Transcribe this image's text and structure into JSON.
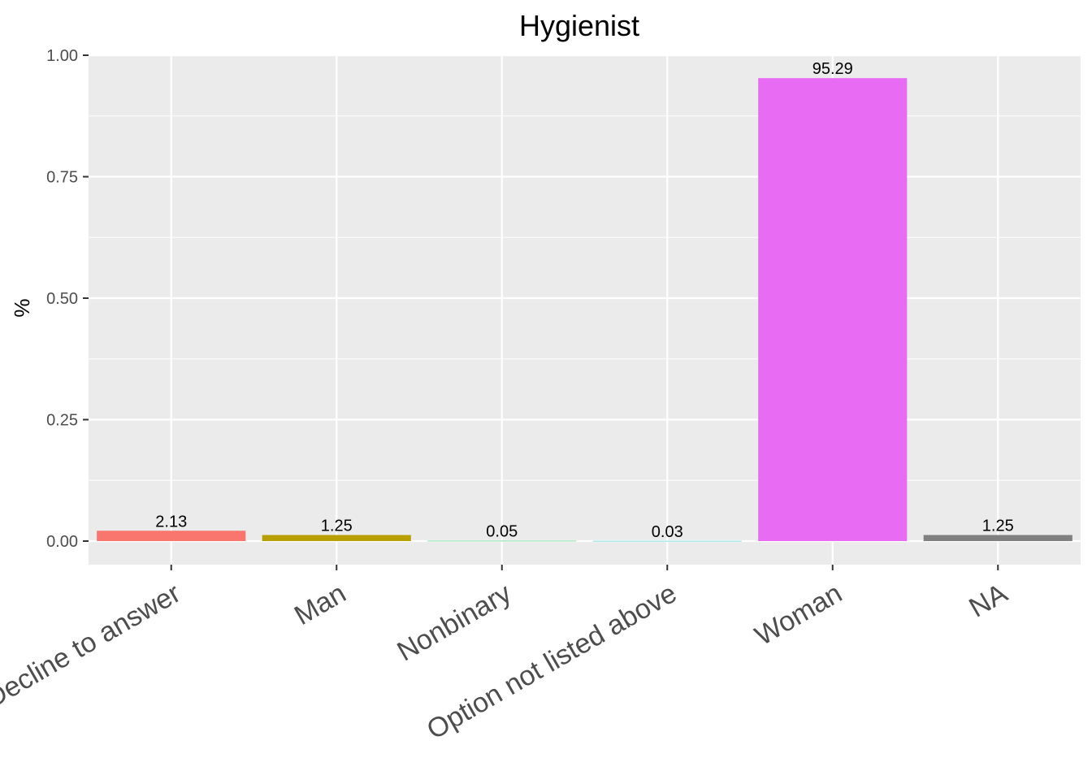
{
  "chart_data": {
    "type": "bar",
    "title": "Hygienist",
    "xlabel": "",
    "ylabel": "%",
    "categories": [
      "Decline to answer",
      "Man",
      "Nonbinary",
      "Option not listed above",
      "Woman",
      "NA"
    ],
    "values": [
      0.0213,
      0.0125,
      0.0005,
      0.0003,
      0.9529,
      0.0125
    ],
    "data_labels": [
      "2.13",
      "1.25",
      "0.05",
      "0.03",
      "95.29",
      "1.25"
    ],
    "colors": [
      "#F8766D",
      "#B79F00",
      "#00BA38",
      "#00BFC4",
      "#E76BF3",
      "#808080"
    ],
    "ylim": [
      -0.05,
      1.0
    ],
    "yticks": [
      0.0,
      0.25,
      0.5,
      0.75,
      1.0
    ],
    "ytick_labels": [
      "0.00",
      "0.25",
      "0.50",
      "0.75",
      "1.00"
    ],
    "grid": true,
    "panel_background": "#EBEBEB",
    "legend": "none"
  }
}
